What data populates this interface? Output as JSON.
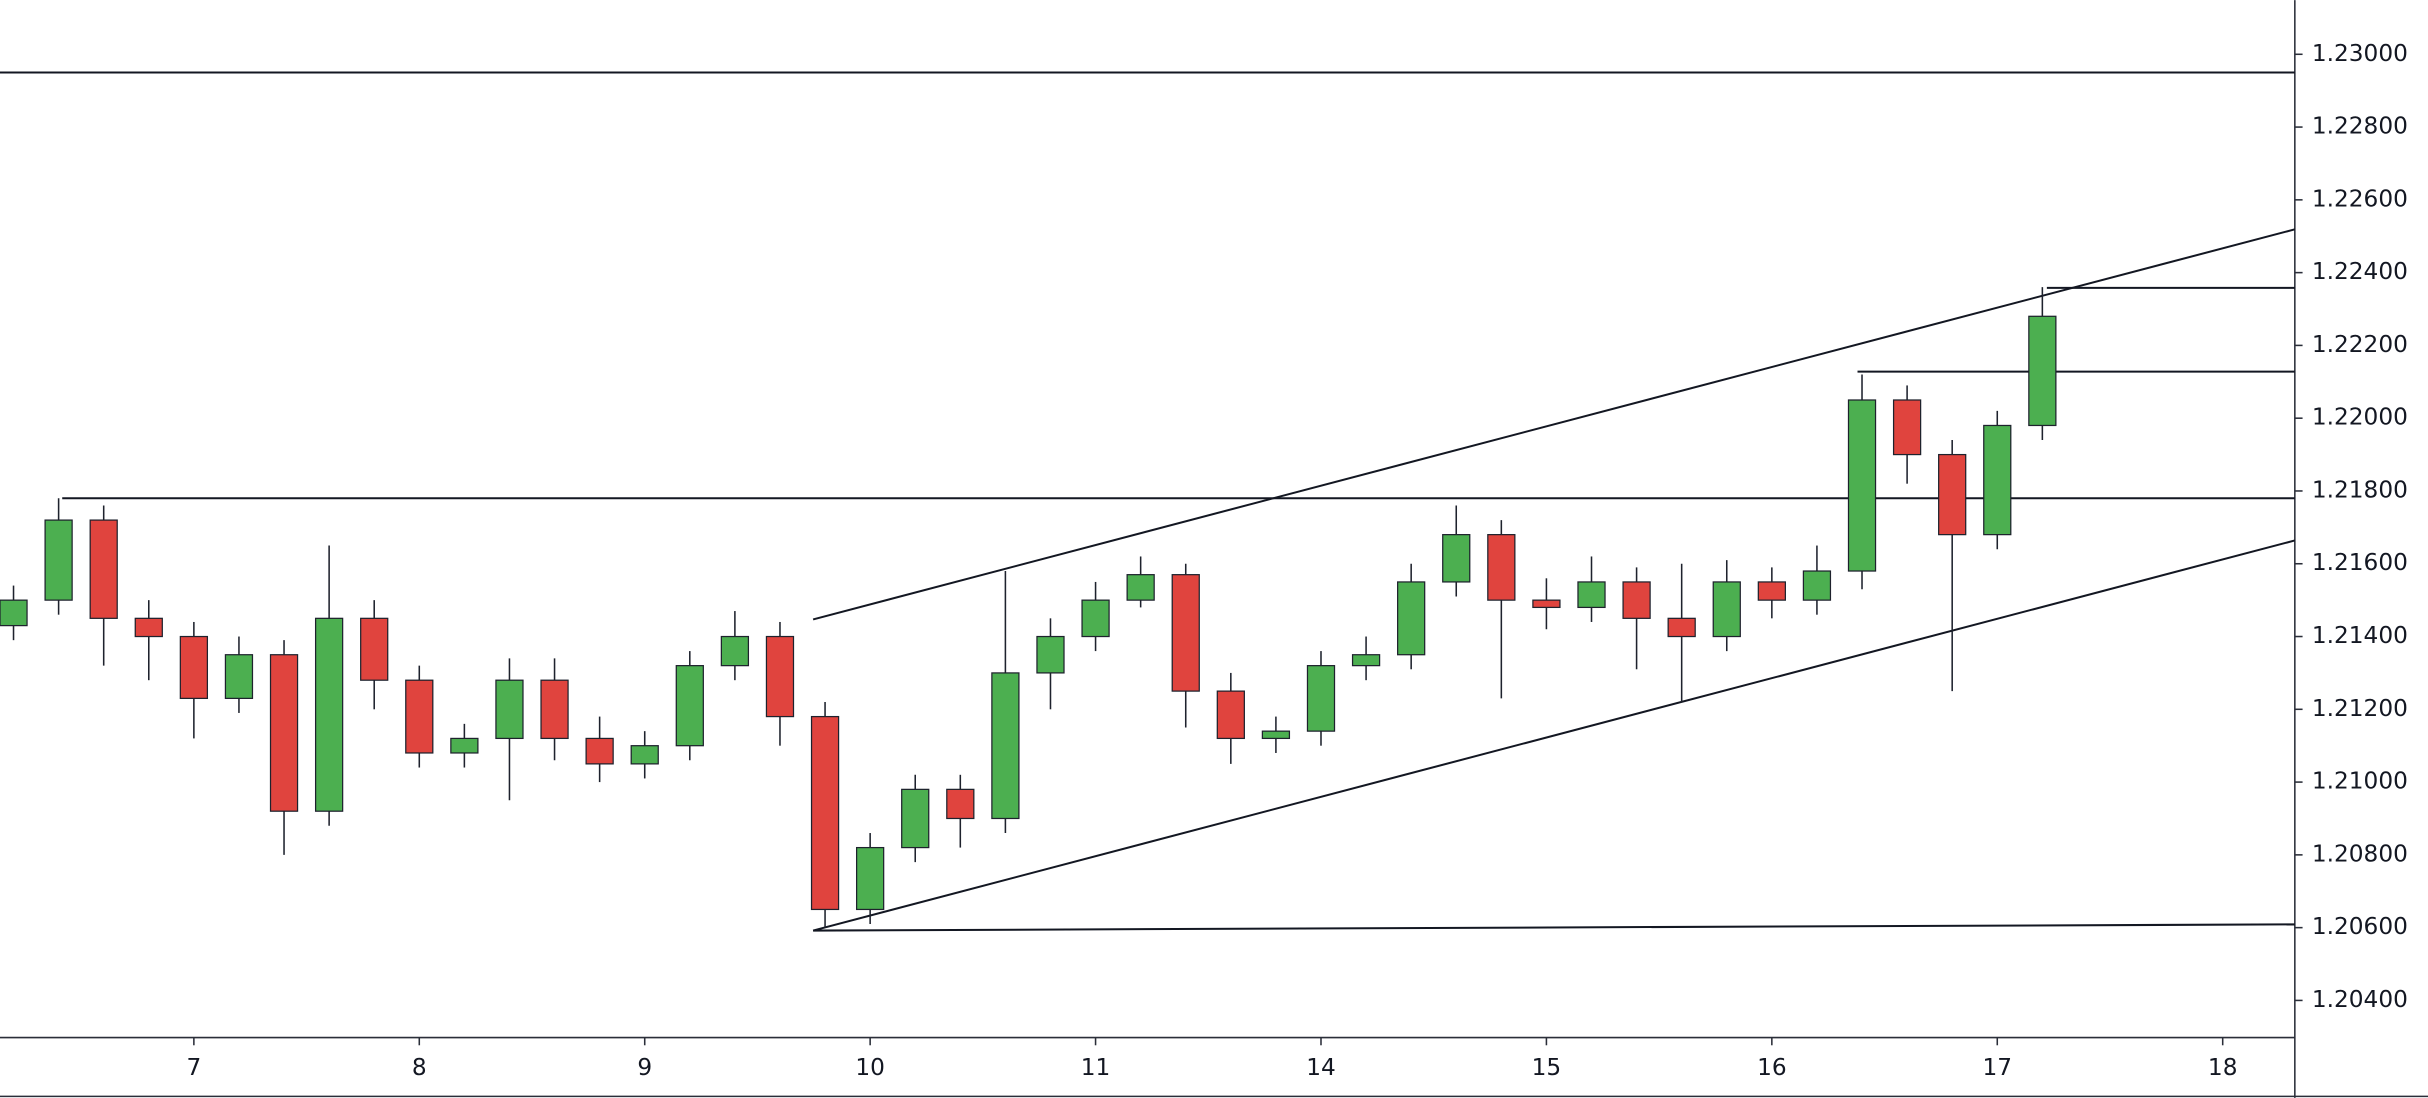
{
  "chart_data": {
    "type": "candlestick",
    "up_color": "#4caf50",
    "down_color": "#e0443e",
    "x": [
      0.2,
      0.4,
      0.6,
      0.8,
      1.0,
      1.2,
      1.4,
      1.6,
      1.8,
      2.0,
      2.2,
      2.4,
      2.6,
      2.8,
      3.0,
      3.2,
      3.4,
      3.6,
      3.8,
      4.0,
      4.2,
      4.4,
      4.6,
      4.8,
      5.0,
      5.2,
      5.4,
      5.6,
      5.8,
      6.0,
      6.2,
      6.4,
      6.6,
      6.8,
      7.0,
      7.2,
      7.4,
      7.6,
      7.8,
      8.0,
      8.2,
      8.4,
      8.6,
      8.8,
      9.0,
      9.2
    ],
    "open": [
      1.2143,
      1.215,
      1.2172,
      1.2145,
      1.214,
      1.2123,
      1.2135,
      1.2092,
      1.2145,
      1.2128,
      1.2108,
      1.2112,
      1.2128,
      1.2112,
      1.2105,
      1.211,
      1.2132,
      1.214,
      1.2118,
      1.2065,
      1.2082,
      1.2098,
      1.209,
      1.213,
      1.214,
      1.215,
      1.2157,
      1.2125,
      1.2112,
      1.2114,
      1.2132,
      1.2135,
      1.2155,
      1.2168,
      1.215,
      1.2148,
      1.2155,
      1.2145,
      1.214,
      1.2155,
      1.215,
      1.2158,
      1.2205,
      1.219,
      1.2168,
      1.2198
    ],
    "high": [
      1.2154,
      1.2178,
      1.2176,
      1.215,
      1.2144,
      1.214,
      1.2139,
      1.2165,
      1.215,
      1.2132,
      1.2116,
      1.2134,
      1.2134,
      1.2118,
      1.2114,
      1.2136,
      1.2147,
      1.2144,
      1.2122,
      1.2086,
      1.2102,
      1.2102,
      1.2158,
      1.2145,
      1.2155,
      1.2162,
      1.216,
      1.213,
      1.2118,
      1.2136,
      1.214,
      1.216,
      1.2176,
      1.2172,
      1.2156,
      1.2162,
      1.2159,
      1.216,
      1.2161,
      1.2159,
      1.2165,
      1.2212,
      1.2209,
      1.2194,
      1.2202,
      1.2236
    ],
    "low": [
      1.2139,
      1.2146,
      1.2132,
      1.2128,
      1.2112,
      1.2119,
      1.208,
      1.2088,
      1.212,
      1.2104,
      1.2104,
      1.2095,
      1.2106,
      1.21,
      1.2101,
      1.2106,
      1.2128,
      1.211,
      1.206,
      1.2061,
      1.2078,
      1.2082,
      1.2086,
      1.212,
      1.2136,
      1.2148,
      1.2115,
      1.2105,
      1.2108,
      1.211,
      1.2128,
      1.2131,
      1.2151,
      1.2123,
      1.2142,
      1.2144,
      1.2131,
      1.2122,
      1.2136,
      1.2145,
      1.2146,
      1.2153,
      1.2182,
      1.2125,
      1.2164,
      1.2194
    ],
    "close": [
      1.215,
      1.2172,
      1.2145,
      1.214,
      1.2123,
      1.2135,
      1.2092,
      1.2145,
      1.2128,
      1.2108,
      1.2112,
      1.2128,
      1.2112,
      1.2105,
      1.211,
      1.2132,
      1.214,
      1.2118,
      1.2065,
      1.2082,
      1.2098,
      1.209,
      1.213,
      1.214,
      1.215,
      1.2157,
      1.2125,
      1.2112,
      1.2114,
      1.2132,
      1.2135,
      1.2155,
      1.2168,
      1.215,
      1.2148,
      1.2155,
      1.2145,
      1.214,
      1.2155,
      1.215,
      1.2158,
      1.2205,
      1.219,
      1.2168,
      1.2198,
      1.2228
    ],
    "lines": [
      {
        "x": [
          0.14,
          10.32
        ],
        "y": [
          1.2295,
          1.2295
        ]
      },
      {
        "x": [
          0.416,
          10.32
        ],
        "y": [
          1.2178,
          1.2178
        ]
      },
      {
        "x": [
          3.747,
          10.32
        ],
        "y": [
          1.21447,
          1.22519
        ]
      },
      {
        "x": [
          3.747,
          10.32
        ],
        "y": [
          1.20592,
          1.21664
        ]
      },
      {
        "x": [
          3.747,
          10.32
        ],
        "y": [
          1.20592,
          1.20609
        ]
      },
      {
        "x": [
          8.38,
          10.32
        ],
        "y": [
          1.22128,
          1.22128
        ]
      },
      {
        "x": [
          9.22,
          10.32
        ],
        "y": [
          1.22358,
          1.22358
        ]
      }
    ],
    "xlim": [
      0.14,
      10.32
    ],
    "ylim": [
      1.20298,
      1.23149
    ],
    "xticks": [
      {
        "value": 1,
        "label": "7"
      },
      {
        "value": 2,
        "label": "8"
      },
      {
        "value": 3,
        "label": "9"
      },
      {
        "value": 4,
        "label": "10"
      },
      {
        "value": 5,
        "label": "11"
      },
      {
        "value": 6,
        "label": "14"
      },
      {
        "value": 7,
        "label": "15"
      },
      {
        "value": 8,
        "label": "16"
      },
      {
        "value": 9,
        "label": "17"
      },
      {
        "value": 10,
        "label": "18"
      }
    ],
    "yticks": [
      {
        "value": 1.23,
        "label": "1.23000"
      },
      {
        "value": 1.228,
        "label": "1.22800"
      },
      {
        "value": 1.226,
        "label": "1.22600"
      },
      {
        "value": 1.224,
        "label": "1.22400"
      },
      {
        "value": 1.222,
        "label": "1.22200"
      },
      {
        "value": 1.22,
        "label": "1.22000"
      },
      {
        "value": 1.218,
        "label": "1.21800"
      },
      {
        "value": 1.216,
        "label": "1.21600"
      },
      {
        "value": 1.214,
        "label": "1.21400"
      },
      {
        "value": 1.212,
        "label": "1.21200"
      },
      {
        "value": 1.21,
        "label": "1.21000"
      },
      {
        "value": 1.208,
        "label": "1.20800"
      },
      {
        "value": 1.206,
        "label": "1.20600"
      },
      {
        "value": 1.204,
        "label": "1.20400"
      }
    ]
  }
}
